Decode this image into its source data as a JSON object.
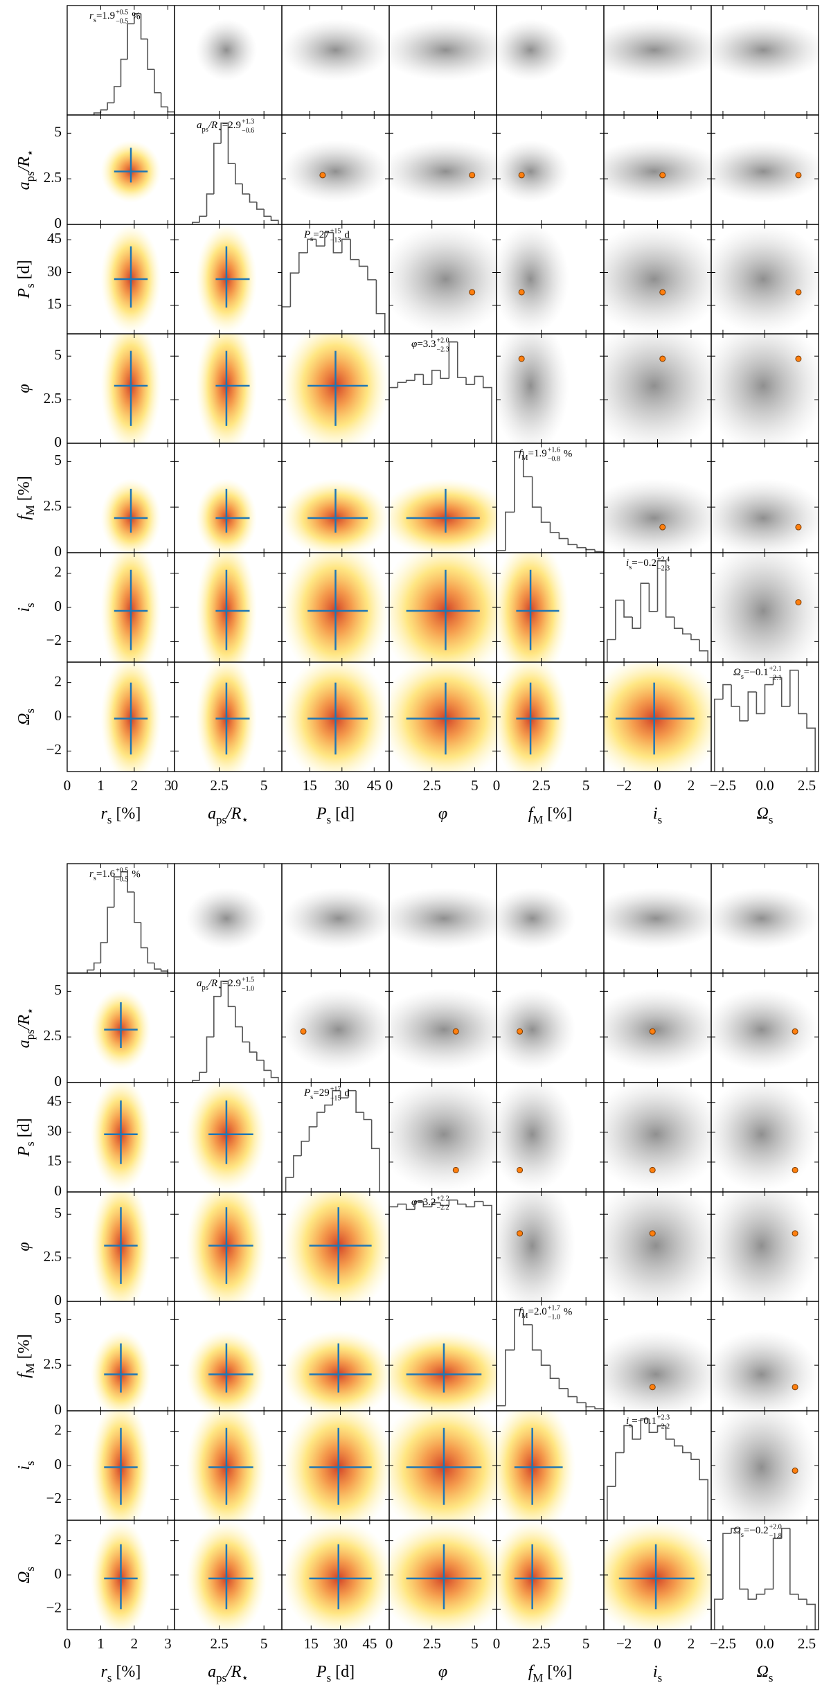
{
  "chart_data": [
    {
      "type": "corner",
      "params": [
        {
          "label": {
            "base": "r",
            "sub": "s",
            "unit": "[%]"
          },
          "lim": [
            0,
            3.2
          ],
          "xticks": [
            0,
            1,
            2,
            3
          ],
          "median": 1.9,
          "plus": 0.5,
          "minus": 0.5,
          "value_labels": {
            "median": "1.9",
            "plus": "+0.5",
            "minus": "−0.5"
          },
          "eq": "=",
          "annot_unit": "%",
          "truth": null,
          "bins": [
            0.8,
            1.0,
            1.2,
            1.4,
            1.6,
            1.8,
            2.0,
            2.2,
            2.4,
            2.6,
            2.8,
            3.0,
            3.2
          ],
          "hist": [
            2,
            5,
            12,
            28,
            55,
            90,
            100,
            75,
            45,
            22,
            8,
            3
          ]
        },
        {
          "label": {
            "base": "a",
            "sub": "ps",
            "rest": "/R",
            "rest_sub": "⋆"
          },
          "lim": [
            0,
            6
          ],
          "xticks": [
            0,
            2.5,
            5
          ],
          "yticks": [
            0,
            2.5,
            5
          ],
          "median": 2.9,
          "plus": 1.3,
          "minus": 0.6,
          "value_labels": {
            "median": "2.9",
            "plus": "+1.3",
            "minus": "−0.6"
          },
          "eq": "=",
          "truth": 2.7,
          "bins": [
            1.0,
            1.4,
            1.8,
            2.2,
            2.6,
            3.0,
            3.4,
            3.8,
            4.2,
            4.6,
            5.0,
            5.4,
            5.8
          ],
          "hist": [
            2,
            8,
            30,
            80,
            100,
            60,
            40,
            30,
            22,
            15,
            8,
            4
          ]
        },
        {
          "label": {
            "base": "P",
            "sub": "s",
            "unit": "[d]"
          },
          "lim": [
            2,
            52
          ],
          "xticks": [
            15,
            30,
            45
          ],
          "yticks": [
            15,
            30,
            45
          ],
          "median": 27,
          "plus": 15,
          "minus": 13,
          "value_labels": {
            "median": "27",
            "plus": "+15",
            "minus": "−13"
          },
          "eq": "=",
          "annot_unit": "d",
          "truth": 21,
          "bins": [
            2,
            6,
            10,
            14,
            18,
            22,
            26,
            30,
            34,
            38,
            42,
            46,
            50
          ],
          "hist": [
            20,
            45,
            60,
            70,
            65,
            75,
            60,
            70,
            55,
            50,
            40,
            15
          ]
        },
        {
          "label": {
            "base": "φ"
          },
          "lim": [
            0,
            6.28
          ],
          "xticks": [
            0,
            2.5,
            5
          ],
          "yticks": [
            0,
            2.5,
            5
          ],
          "median": 3.3,
          "plus": 2.0,
          "minus": 2.3,
          "value_labels": {
            "median": "3.3",
            "plus": "+2.0",
            "minus": "−2.3"
          },
          "eq": "=",
          "truth": 4.85,
          "bins": [
            0,
            0.5,
            1.0,
            1.5,
            2.0,
            2.5,
            3.0,
            3.5,
            4.0,
            4.5,
            5.0,
            5.5,
            6.0
          ],
          "hist": [
            55,
            60,
            62,
            68,
            58,
            72,
            64,
            100,
            65,
            58,
            66,
            55
          ]
        },
        {
          "label": {
            "base": "f",
            "sub": "M",
            "unit": "[%]"
          },
          "lim": [
            0,
            6
          ],
          "xticks": [
            0,
            2.5,
            5
          ],
          "yticks": [
            0,
            2.5,
            5
          ],
          "median": 1.9,
          "plus": 1.6,
          "minus": 0.8,
          "value_labels": {
            "median": "1.9",
            "plus": "+1.6",
            "minus": "−0.8"
          },
          "eq": "=",
          "annot_unit": "%",
          "truth": 1.4,
          "bins": [
            0,
            0.5,
            1.0,
            1.5,
            2.0,
            2.5,
            3.0,
            3.5,
            4.0,
            4.5,
            5.0,
            5.5,
            6.0
          ],
          "hist": [
            2,
            40,
            100,
            75,
            45,
            30,
            20,
            14,
            8,
            5,
            3,
            1
          ]
        },
        {
          "label": {
            "base": "i",
            "sub": "s"
          },
          "lim": [
            -3.2,
            3.2
          ],
          "xticks": [
            {
              "value": -2,
              "label": "−2"
            },
            0,
            2
          ],
          "yticks": [
            {
              "value": -2,
              "label": "−2"
            },
            0,
            2
          ],
          "median": -0.2,
          "plus": 2.4,
          "minus": 2.3,
          "value_labels": {
            "median": "−0.2",
            "plus": "+2.4",
            "minus": "−2.3"
          },
          "eq": "=",
          "truth": 0.3,
          "bins": [
            -3.0,
            -2.5,
            -2.0,
            -1.5,
            -1.0,
            -0.5,
            0,
            0.5,
            1.0,
            1.5,
            2.0,
            2.5,
            3.0
          ],
          "hist": [
            20,
            55,
            40,
            30,
            70,
            45,
            90,
            40,
            30,
            25,
            20,
            10
          ]
        },
        {
          "label": {
            "base": "Ω",
            "sub": "s"
          },
          "lim": [
            -3.2,
            3.2
          ],
          "xticks": [
            {
              "value": -2.5,
              "label": "−2.5"
            },
            {
              "value": 0,
              "label": "0.0"
            },
            2.5
          ],
          "yticks": [
            {
              "value": -2,
              "label": "−2"
            },
            0,
            2
          ],
          "median": -0.1,
          "plus": 2.1,
          "minus": 2.1,
          "value_labels": {
            "median": "−0.1",
            "plus": "+2.1",
            "minus": "−2.1"
          },
          "eq": "=",
          "truth": 2.0,
          "bins": [
            -3.0,
            -2.5,
            -2.0,
            -1.5,
            -1.0,
            -0.5,
            0,
            0.5,
            1.0,
            1.5,
            2.0,
            2.5,
            3.0
          ],
          "hist": [
            50,
            60,
            45,
            35,
            55,
            40,
            60,
            65,
            45,
            70,
            40,
            30
          ]
        }
      ]
    },
    {
      "type": "corner",
      "params": [
        {
          "label": {
            "base": "r",
            "sub": "s",
            "unit": "[%]"
          },
          "lim": [
            0,
            3.2
          ],
          "xticks": [
            0,
            1,
            2,
            3
          ],
          "median": 1.6,
          "plus": 0.5,
          "minus": 0.5,
          "value_labels": {
            "median": "1.6",
            "plus": "+0.5",
            "minus": "−0.5"
          },
          "eq": "=",
          "annot_unit": "%",
          "truth": null,
          "bins": [
            0.6,
            0.8,
            1.0,
            1.2,
            1.4,
            1.6,
            1.8,
            2.0,
            2.2,
            2.4,
            2.6,
            2.8,
            3.0
          ],
          "hist": [
            3,
            10,
            30,
            65,
            95,
            100,
            80,
            50,
            25,
            10,
            4,
            2
          ]
        },
        {
          "label": {
            "base": "a",
            "sub": "ps",
            "rest": "/R",
            "rest_sub": "⋆"
          },
          "lim": [
            0,
            6
          ],
          "xticks": [
            2.5,
            5
          ],
          "yticks": [
            0,
            2.5,
            5
          ],
          "median": 2.9,
          "plus": 1.5,
          "minus": 1.0,
          "value_labels": {
            "median": "2.9",
            "plus": "+1.5",
            "minus": "−1.0"
          },
          "eq": "=",
          "truth": 2.8,
          "bins": [
            1.0,
            1.4,
            1.8,
            2.2,
            2.6,
            3.0,
            3.4,
            3.8,
            4.2,
            4.6,
            5.0,
            5.4,
            5.8
          ],
          "hist": [
            2,
            10,
            45,
            85,
            100,
            75,
            55,
            40,
            30,
            22,
            12,
            5
          ]
        },
        {
          "label": {
            "base": "P",
            "sub": "s",
            "unit": "[d]"
          },
          "lim": [
            0,
            55
          ],
          "xticks": [
            15,
            30,
            45
          ],
          "yticks": [
            0,
            15,
            30,
            45
          ],
          "median": 29,
          "plus": 17,
          "minus": 15,
          "value_labels": {
            "median": "29",
            "plus": "+17",
            "minus": "−15"
          },
          "eq": "=",
          "annot_unit": "d",
          "truth": 11,
          "bins": [
            2,
            6,
            10,
            14,
            18,
            22,
            26,
            30,
            34,
            38,
            42,
            46,
            50
          ],
          "hist": [
            10,
            25,
            35,
            45,
            55,
            60,
            70,
            65,
            70,
            55,
            50,
            30
          ]
        },
        {
          "label": {
            "base": "φ"
          },
          "lim": [
            0,
            6.28
          ],
          "xticks": [
            0,
            2.5,
            5
          ],
          "yticks": [
            0,
            2.5,
            5
          ],
          "median": 3.2,
          "plus": 2.2,
          "minus": 2.2,
          "value_labels": {
            "median": "3.2",
            "plus": "+2.2",
            "minus": "−2.2"
          },
          "eq": "=",
          "truth": 3.9,
          "bins": [
            0,
            0.5,
            1.0,
            1.5,
            2.0,
            2.5,
            3.0,
            3.5,
            4.0,
            4.5,
            5.0,
            5.5,
            6.0
          ],
          "hist": [
            70,
            72,
            68,
            74,
            70,
            73,
            71,
            75,
            72,
            70,
            74,
            71
          ]
        },
        {
          "label": {
            "base": "f",
            "sub": "M",
            "unit": "[%]"
          },
          "lim": [
            0,
            6
          ],
          "xticks": [
            0,
            2.5,
            5
          ],
          "yticks": [
            0,
            2.5,
            5
          ],
          "median": 2.0,
          "plus": 1.7,
          "minus": 1.0,
          "value_labels": {
            "median": "2.0",
            "plus": "+1.7",
            "minus": "−1.0"
          },
          "eq": "=",
          "annot_unit": "%",
          "truth": 1.3,
          "bins": [
            0,
            0.5,
            1.0,
            1.5,
            2.0,
            2.5,
            3.0,
            3.5,
            4.0,
            4.5,
            5.0,
            5.5,
            6.0
          ],
          "hist": [
            5,
            60,
            100,
            85,
            60,
            45,
            32,
            22,
            14,
            8,
            4,
            2
          ]
        },
        {
          "label": {
            "base": "i",
            "sub": "s"
          },
          "lim": [
            -3.2,
            3.2
          ],
          "xticks": [
            {
              "value": -2,
              "label": "−2"
            },
            0,
            2
          ],
          "yticks": [
            {
              "value": -2,
              "label": "−2"
            },
            0,
            2
          ],
          "median": -0.1,
          "plus": 2.3,
          "minus": 2.2,
          "value_labels": {
            "median": "−0.1",
            "plus": "+2.3",
            "minus": "−2.2"
          },
          "eq": "=",
          "truth": -0.3,
          "bins": [
            -3.0,
            -2.5,
            -2.0,
            -1.5,
            -1.0,
            -0.5,
            0,
            0.5,
            1.0,
            1.5,
            2.0,
            2.5,
            3.0
          ],
          "hist": [
            25,
            50,
            70,
            60,
            75,
            65,
            70,
            60,
            55,
            50,
            45,
            30
          ]
        },
        {
          "label": {
            "base": "Ω",
            "sub": "s"
          },
          "lim": [
            -3.2,
            3.2
          ],
          "xticks": [
            {
              "value": -2.5,
              "label": "−2.5"
            },
            {
              "value": 0,
              "label": "0.0"
            },
            2.5
          ],
          "yticks": [
            {
              "value": -2,
              "label": "−2"
            },
            0,
            2
          ],
          "median": -0.2,
          "plus": 2.0,
          "minus": 1.8,
          "value_labels": {
            "median": "−0.2",
            "plus": "+2.0",
            "minus": "−1.8"
          },
          "eq": "=",
          "truth": 1.8,
          "bins": [
            -3.0,
            -2.5,
            -2.0,
            -1.5,
            -1.0,
            -0.5,
            0,
            0.5,
            1.0,
            1.5,
            2.0,
            2.5,
            3.0
          ],
          "hist": [
            30,
            95,
            100,
            40,
            30,
            35,
            40,
            90,
            100,
            35,
            30,
            25
          ]
        }
      ]
    }
  ]
}
